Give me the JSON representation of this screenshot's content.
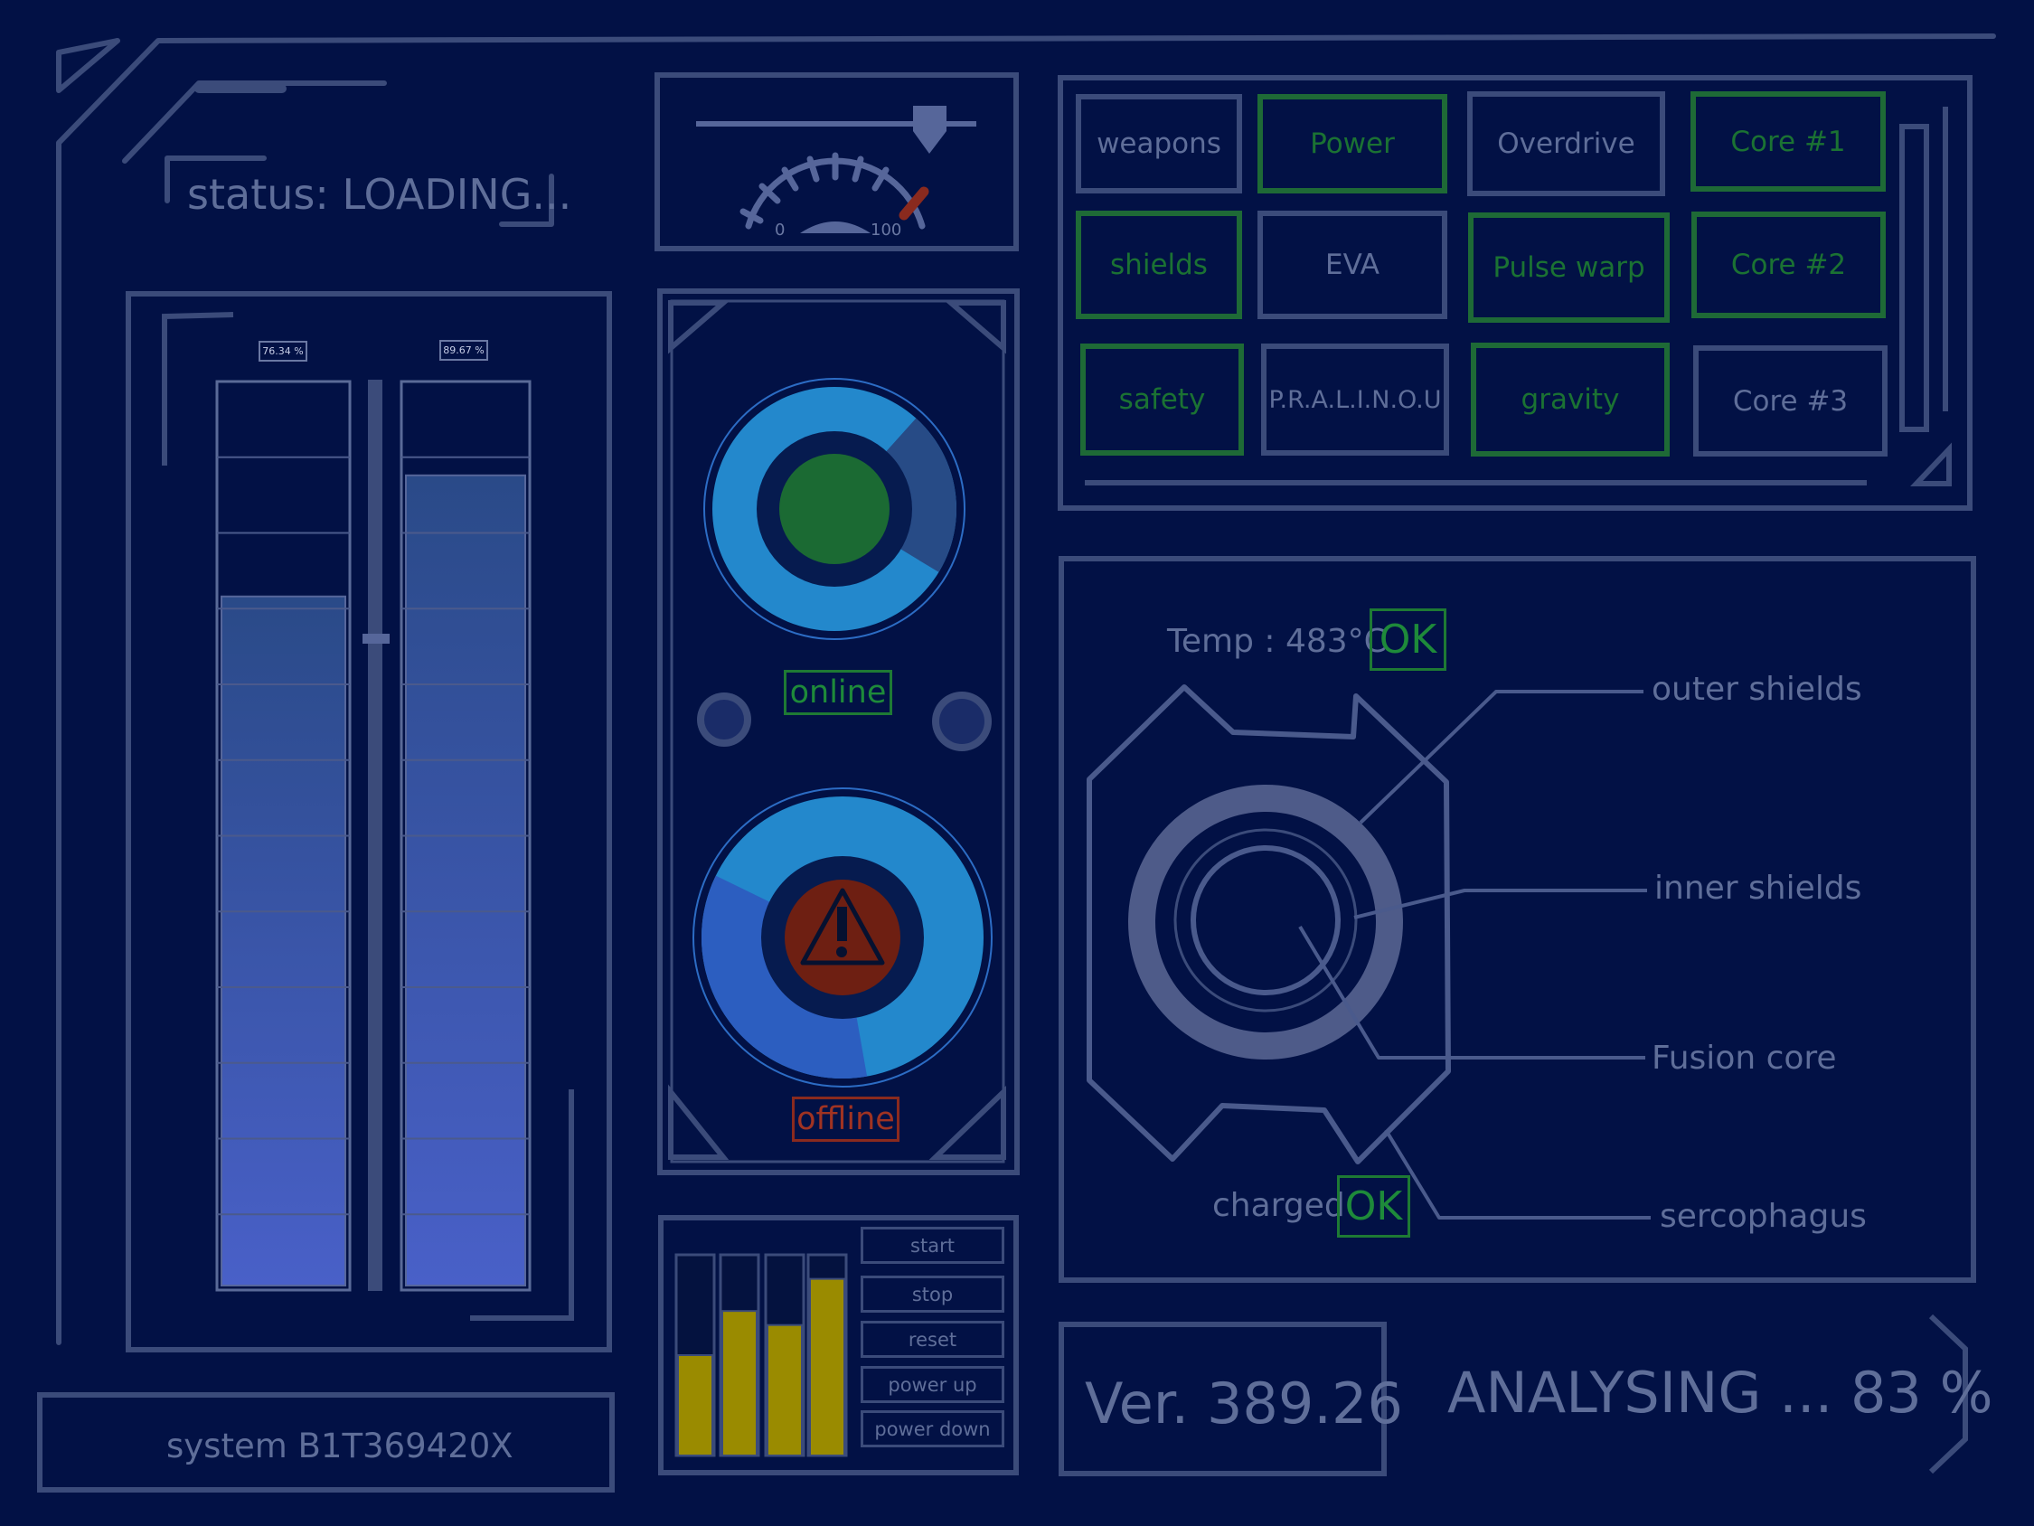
{
  "header": {
    "status": "status: LOADING..."
  },
  "footer": {
    "system": "system B1T369420X",
    "version": "Ver. 389.26",
    "analysing": "ANALYSING ... 83 %",
    "analysing_progress": 83
  },
  "gauges": {
    "left_level": 76.34,
    "right_level": 89.67,
    "left_label": "76.34 %",
    "right_label": "89.67 %"
  },
  "dial": {
    "min_label": "0",
    "max_label": "100"
  },
  "reactor": {
    "online_label": "online",
    "offline_label": "offline",
    "online_ring_fraction": 0.78,
    "offline_ring_fraction": 0.65
  },
  "systems_buttons": [
    {
      "label": "weapons",
      "active": false
    },
    {
      "label": "Power",
      "active": true
    },
    {
      "label": "Overdrive",
      "active": false
    },
    {
      "label": "Core #1",
      "active": true
    },
    {
      "label": "shields",
      "active": true
    },
    {
      "label": "EVA",
      "active": false
    },
    {
      "label": "Pulse warp",
      "active": true
    },
    {
      "label": "Core #2",
      "active": true
    },
    {
      "label": "safety",
      "active": true
    },
    {
      "label": "P.R.A.L.I.N.O.U",
      "active": false
    },
    {
      "label": "gravity",
      "active": true
    },
    {
      "label": "Core #3",
      "active": false
    }
  ],
  "controls": {
    "buttons": [
      "start",
      "stop",
      "reset",
      "power up",
      "power down"
    ],
    "bar_levels": [
      0.5,
      0.72,
      0.65,
      0.88
    ]
  },
  "core_panel": {
    "temp": "Temp : 483°C",
    "temp_status": "OK",
    "charged": "charged",
    "charged_status": "OK",
    "callouts": [
      "outer shields",
      "inner shields",
      "Fusion core",
      "sercophagus"
    ]
  },
  "colors": {
    "background": "#021145",
    "line": "#3b4b7a",
    "green": "#1e7a34",
    "red": "#8a2a1e",
    "ring_light": "#2388cc",
    "ring_dark": "#274b86",
    "bar_yellow": "#9a8b00"
  }
}
